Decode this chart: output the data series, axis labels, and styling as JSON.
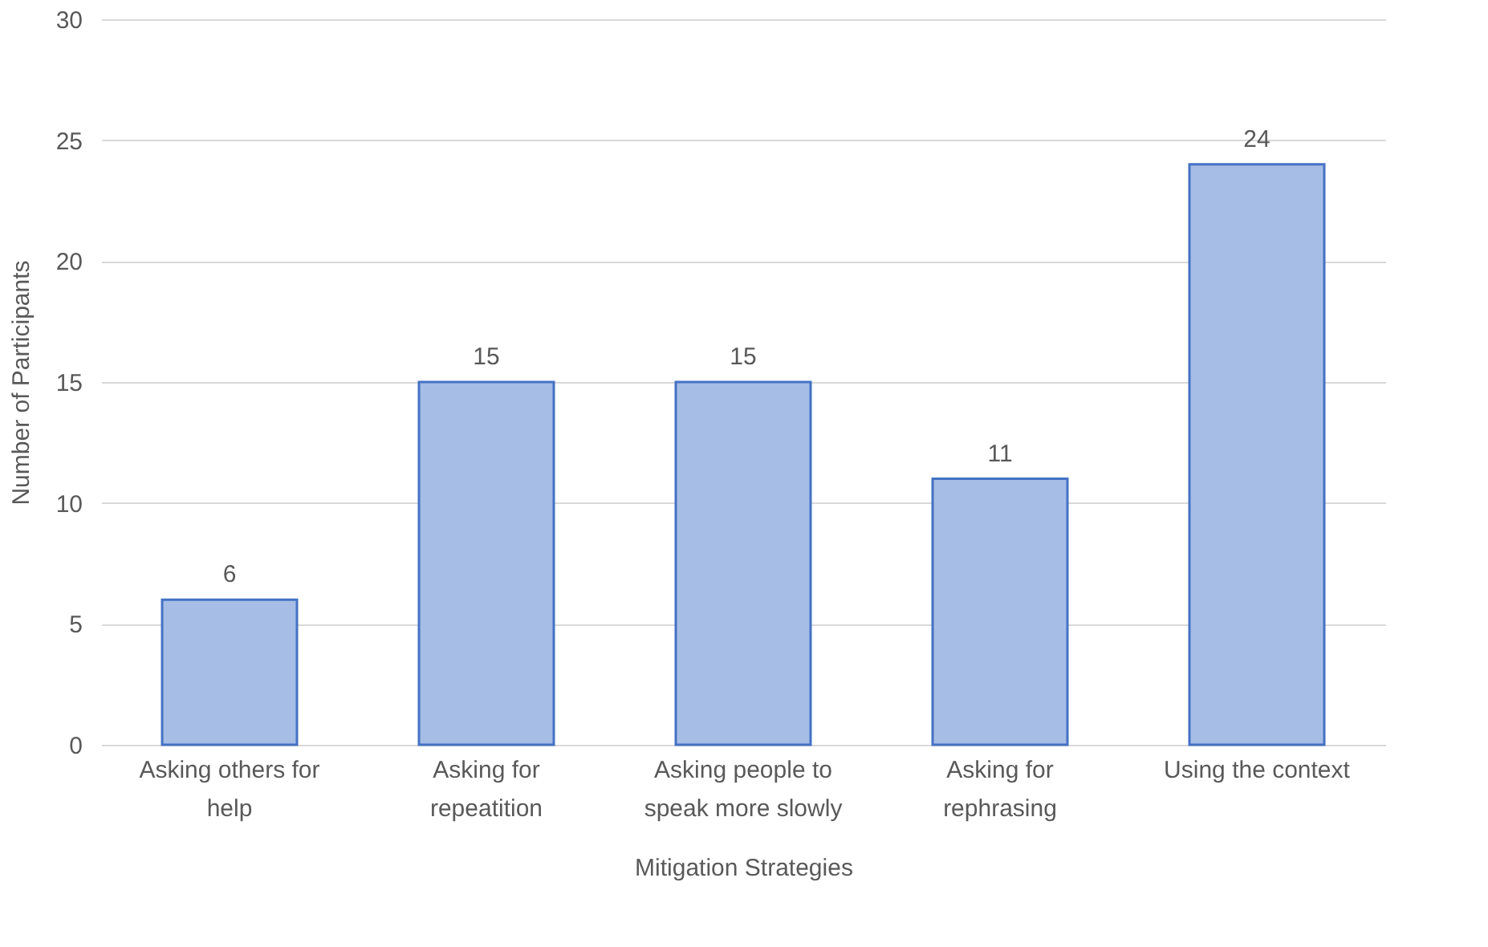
{
  "chart_data": {
    "type": "bar",
    "categories": [
      "Asking others for help",
      "Asking for repeatition",
      "Asking people to speak more slowly",
      "Asking for rephrasing",
      "Using the context"
    ],
    "values": [
      6,
      15,
      15,
      11,
      24
    ],
    "color": "#a6bde6",
    "data_labels": true,
    "xlabel": "Mitigation Strategies",
    "ylabel": "Number of Participants",
    "ylim": [
      0,
      30
    ],
    "yticks": [
      0,
      5,
      10,
      15,
      20,
      25,
      30
    ],
    "grid": "y"
  }
}
